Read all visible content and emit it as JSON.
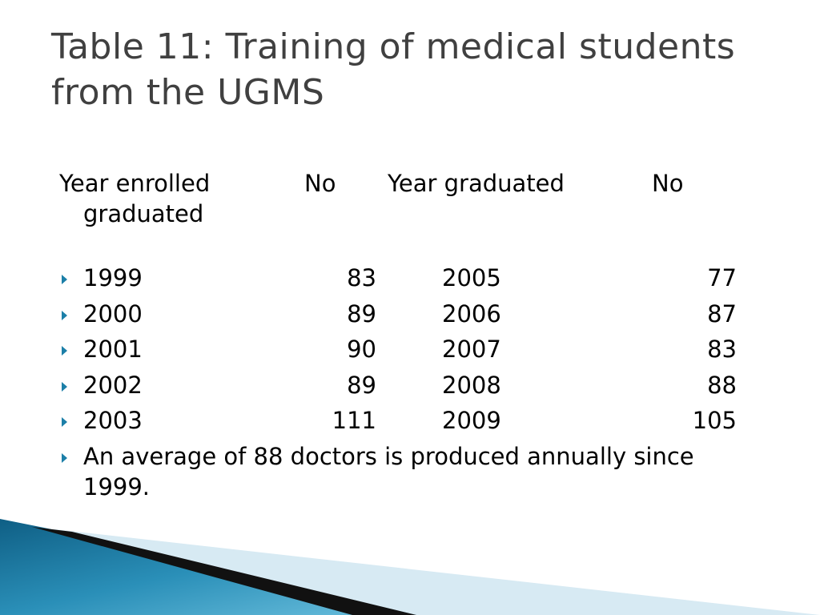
{
  "slide": {
    "title": "Table 11: Training of medical students from the UGMS"
  },
  "table": {
    "headers": {
      "year_enrolled": "Year enrolled",
      "no_enrolled": "No",
      "year_graduated": "Year graduated",
      "no_graduated": "No",
      "graduated_wrap": "graduated"
    },
    "rows": [
      {
        "year_enrolled": "1999",
        "enrolled": "83",
        "year_graduated": "2005",
        "graduated": "77"
      },
      {
        "year_enrolled": "2000",
        "enrolled": "89",
        "year_graduated": "2006",
        "graduated": "87"
      },
      {
        "year_enrolled": "2001",
        "enrolled": "90",
        "year_graduated": "2007",
        "graduated": "83"
      },
      {
        "year_enrolled": "2002",
        "enrolled": "89",
        "year_graduated": "2008",
        "graduated": "88"
      },
      {
        "year_enrolled": "2003",
        "enrolled": "111",
        "year_graduated": "2009",
        "graduated": "105"
      }
    ],
    "note": "An average of 88 doctors is produced annually since 1999."
  },
  "theme": {
    "title_color": "#404040",
    "bullet_color": "#1c7fa8",
    "accent_teal": "#2a8fb8",
    "accent_light": "#cfe6f0"
  },
  "icons": {
    "bullet": "triangle-right-bullet-icon"
  }
}
